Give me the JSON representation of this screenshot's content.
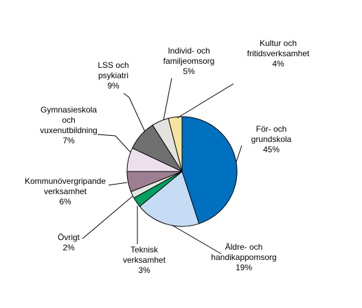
{
  "chart_data": {
    "type": "pie",
    "categories": [
      "För- och\ngrundskola",
      "Äldre- och\nhandikappomsorg",
      "Teknisk\nverksamhet",
      "Övrigt",
      "Kommunövergripande\nverksamhet",
      "Gymnasieskola\noch\nvuxenutbildning",
      "LSS och\npsykiatri",
      "Individ- och\nfamiljeomsorg",
      "Kultur och\nfritidsverksamhet"
    ],
    "values": [
      45,
      19,
      3,
      2,
      6,
      7,
      9,
      5,
      4
    ],
    "value_labels": [
      "45%",
      "19%",
      "3%",
      "2%",
      "6%",
      "7%",
      "9%",
      "5%",
      "4%"
    ],
    "colors": [
      "#0070c0",
      "#c6dcf4",
      "#00a060",
      "#dfe8df",
      "#9e7e92",
      "#ece0ec",
      "#707070",
      "#e2e2de",
      "#f5e3a0"
    ]
  }
}
